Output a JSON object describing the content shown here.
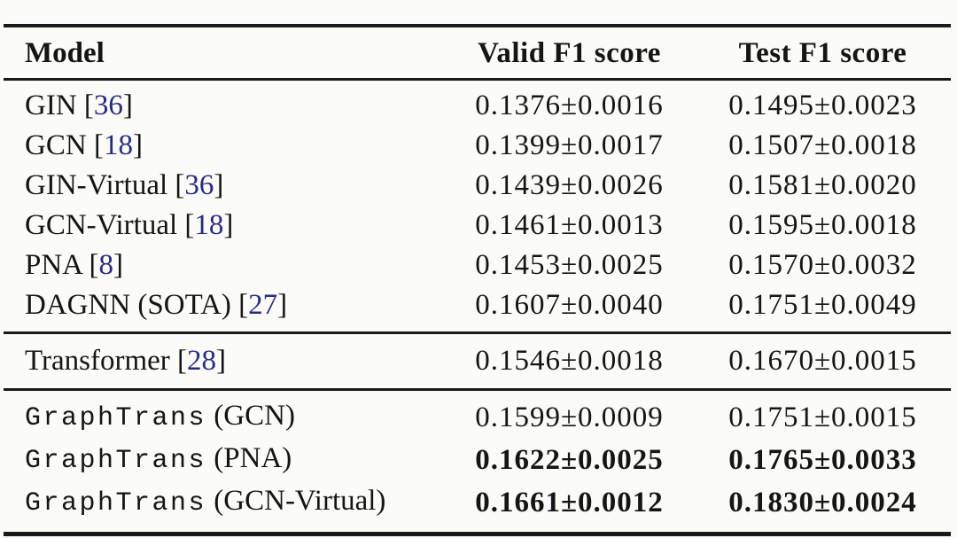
{
  "table": {
    "columns": {
      "model": "Model",
      "valid": "Valid F1 score",
      "test": "Test F1 score"
    },
    "citation_color": "#282c80",
    "groups": [
      {
        "name": "gnn-baselines",
        "rows": [
          {
            "model": "GIN",
            "mono": false,
            "suffix": "",
            "cite": "36",
            "valid": "0.1376±0.0016",
            "test": "0.1495±0.0023",
            "bold": false
          },
          {
            "model": "GCN",
            "mono": false,
            "suffix": "",
            "cite": "18",
            "valid": "0.1399±0.0017",
            "test": "0.1507±0.0018",
            "bold": false
          },
          {
            "model": "GIN-Virtual",
            "mono": false,
            "suffix": "",
            "cite": "36",
            "valid": "0.1439±0.0026",
            "test": "0.1581±0.0020",
            "bold": false
          },
          {
            "model": "GCN-Virtual",
            "mono": false,
            "suffix": "",
            "cite": "18",
            "valid": "0.1461±0.0013",
            "test": "0.1595±0.0018",
            "bold": false
          },
          {
            "model": "PNA",
            "mono": false,
            "suffix": "",
            "cite": "8",
            "valid": "0.1453±0.0025",
            "test": "0.1570±0.0032",
            "bold": false
          },
          {
            "model": "DAGNN (SOTA)",
            "mono": false,
            "suffix": "",
            "cite": "27",
            "valid": "0.1607±0.0040",
            "test": "0.1751±0.0049",
            "bold": false
          }
        ]
      },
      {
        "name": "transformer-baseline",
        "rows": [
          {
            "model": "Transformer",
            "mono": false,
            "suffix": "",
            "cite": "28",
            "valid": "0.1546±0.0018",
            "test": "0.1670±0.0015",
            "bold": false
          }
        ]
      },
      {
        "name": "graphtrans-ours",
        "rows": [
          {
            "model": "GraphTrans",
            "mono": true,
            "suffix": " (GCN)",
            "cite": "",
            "valid": "0.1599±0.0009",
            "test": "0.1751±0.0015",
            "bold": false
          },
          {
            "model": "GraphTrans",
            "mono": true,
            "suffix": " (PNA)",
            "cite": "",
            "valid": "0.1622±0.0025",
            "test": "0.1765±0.0033",
            "bold": true
          },
          {
            "model": "GraphTrans",
            "mono": true,
            "suffix": " (GCN-Virtual)",
            "cite": "",
            "valid": "0.1661±0.0012",
            "test": "0.1830±0.0024",
            "bold": true
          }
        ]
      }
    ]
  }
}
